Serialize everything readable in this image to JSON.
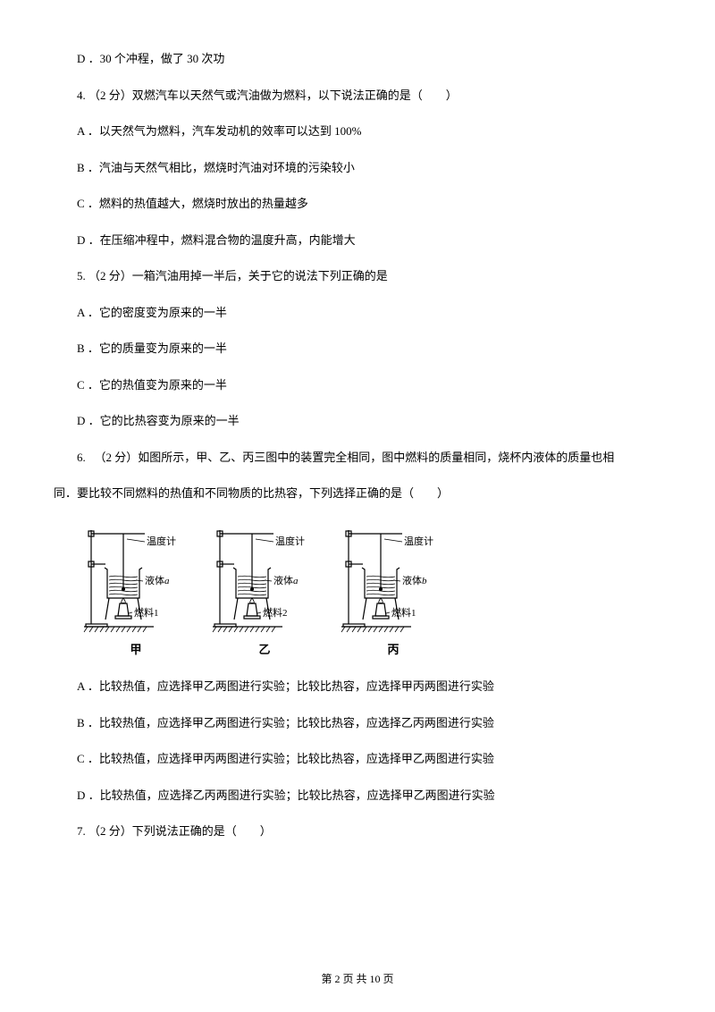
{
  "lines": {
    "d_prev": "D ．30 个冲程，做了 30 次功",
    "q4": "4. （2 分）双燃汽车以天然气或汽油做为燃料，以下说法正确的是（　　）",
    "q4a": "A ．以天然气为燃料，汽车发动机的效率可以达到 100%",
    "q4b": "B ．汽油与天然气相比，燃烧时汽油对环境的污染较小",
    "q4c": "C ．燃料的热值越大，燃烧时放出的热量越多",
    "q4d": "D ．在压缩冲程中，燃料混合物的温度升高，内能增大",
    "q5": "5. （2 分）一箱汽油用掉一半后，关于它的说法下列正确的是",
    "q5a": "A ．它的密度变为原来的一半",
    "q5b": "B ．它的质量变为原来的一半",
    "q5c": "C ．它的热值变为原来的一半",
    "q5d": "D ．它的比热容变为原来的一半",
    "q6_1": "6. 　（2 分）如图所示，甲、乙、丙三图中的装置完全相同，图中燃料的质量相同，烧杯内液体的质量也相",
    "q6_2": "同．要比较不同燃料的热值和不同物质的比热容，下列选择正确的是（　　）",
    "q6a": "A ．比较热值，应选择甲乙两图进行实验；比较比热容，应选择甲丙两图进行实验",
    "q6b": "B ．比较热值，应选择甲乙两图进行实验；比较比热容，应选择乙丙两图进行实验",
    "q6c": "C ．比较热值，应选择甲丙两图进行实验；比较比热容，应选择甲乙两图进行实验",
    "q6d": "D ．比较热值，应选择乙丙两图进行实验；比较比热容，应选择甲乙两图进行实验",
    "q7": "7. （2 分）下列说法正确的是（　　）"
  },
  "apparatus": {
    "items": [
      {
        "label": "甲",
        "thermo": "温度计",
        "liquid_prefix": "液体",
        "liquid_var": "a",
        "fuel": "燃料1"
      },
      {
        "label": "乙",
        "thermo": "温度计",
        "liquid_prefix": "液体",
        "liquid_var": "a",
        "fuel": "燃料2"
      },
      {
        "label": "丙",
        "thermo": "温度计",
        "liquid_prefix": "液体",
        "liquid_var": "b",
        "fuel": "燃料1"
      }
    ],
    "svg": {
      "width": 120,
      "height": 130,
      "stroke": "#000000",
      "stroke_width": 1.2,
      "font_size": 11
    }
  },
  "footer": {
    "prefix": "第 ",
    "page": "2",
    "mid": " 页 共 ",
    "total": "10",
    "suffix": " 页"
  }
}
